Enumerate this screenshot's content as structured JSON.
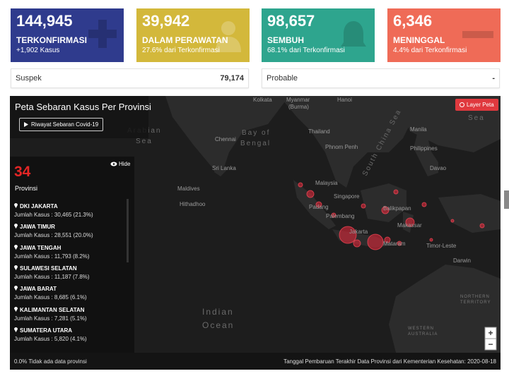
{
  "cards": [
    {
      "value": "144,945",
      "label": "TERKONFIRMASI",
      "sub": "+1,902 Kasus"
    },
    {
      "value": "39,942",
      "label": "DALAM PERAWATAN",
      "sub": "27.6% dari Terkonfirmasi"
    },
    {
      "value": "98,657",
      "label": "SEMBUH",
      "sub": "68.1% dari Terkonfirmasi"
    },
    {
      "value": "6,346",
      "label": "MENINGGAL",
      "sub": "4.4% dari Terkonfirmasi"
    }
  ],
  "secondary": [
    {
      "label": "Suspek",
      "value": "79,174"
    },
    {
      "label": "Probable",
      "value": "-"
    }
  ],
  "map": {
    "title": "Peta Sebaran Kasus Per Provinsi",
    "history_button": "Riwayat Sebaran Covid-19",
    "layer_button": "Layer Peta",
    "province_count": "34",
    "province_label": "Provinsi",
    "hide": "Hide",
    "provinces": [
      {
        "name": "DKI JAKARTA",
        "cases": "Jumlah Kasus : 30,465 (21.3%)"
      },
      {
        "name": "JAWA TIMUR",
        "cases": "Jumlah Kasus : 28,551 (20.0%)"
      },
      {
        "name": "JAWA TENGAH",
        "cases": "Jumlah Kasus : 11,793 (8.2%)"
      },
      {
        "name": "SULAWESI SELATAN",
        "cases": "Jumlah Kasus : 11,187 (7.8%)"
      },
      {
        "name": "JAWA BARAT",
        "cases": "Jumlah Kasus : 8,685 (6.1%)"
      },
      {
        "name": "KALIMANTAN SELATAN",
        "cases": "Jumlah Kasus : 7,281 (5.1%)"
      },
      {
        "name": "SUMATERA UTARA",
        "cases": "Jumlah Kasus : 5,820 (4.1%)"
      }
    ],
    "labels": [
      "Kolkata",
      "Myanmar",
      "(Burma)",
      "Hanoi",
      "Bay of",
      "Bengal",
      "Arabian",
      "Sea",
      "Chennai",
      "Sri Lanka",
      "Thailand",
      "Phnom Penh",
      "South China Sea",
      "Philippines",
      "Manila",
      "Davao",
      "Maldives",
      "Hithadhoo",
      "Malaysia",
      "Singapore",
      "Padang",
      "Palembang",
      "Jakarta",
      "Balikpapan",
      "Makassar",
      "Mataram",
      "Timor-Leste",
      "Darwin",
      "Indian",
      "Ocean",
      "NORTHERN",
      "TERRITORY",
      "WESTERN",
      "AUSTRALIA",
      "Sea"
    ],
    "footer_left": "0.0% Tidak ada data provinsi",
    "footer_right": "Tanggal Pembaruan Terakhir Data Provinsi dari Kementerian Kesehatan: 2020-08-18",
    "zoom_in": "+",
    "zoom_out": "−"
  }
}
